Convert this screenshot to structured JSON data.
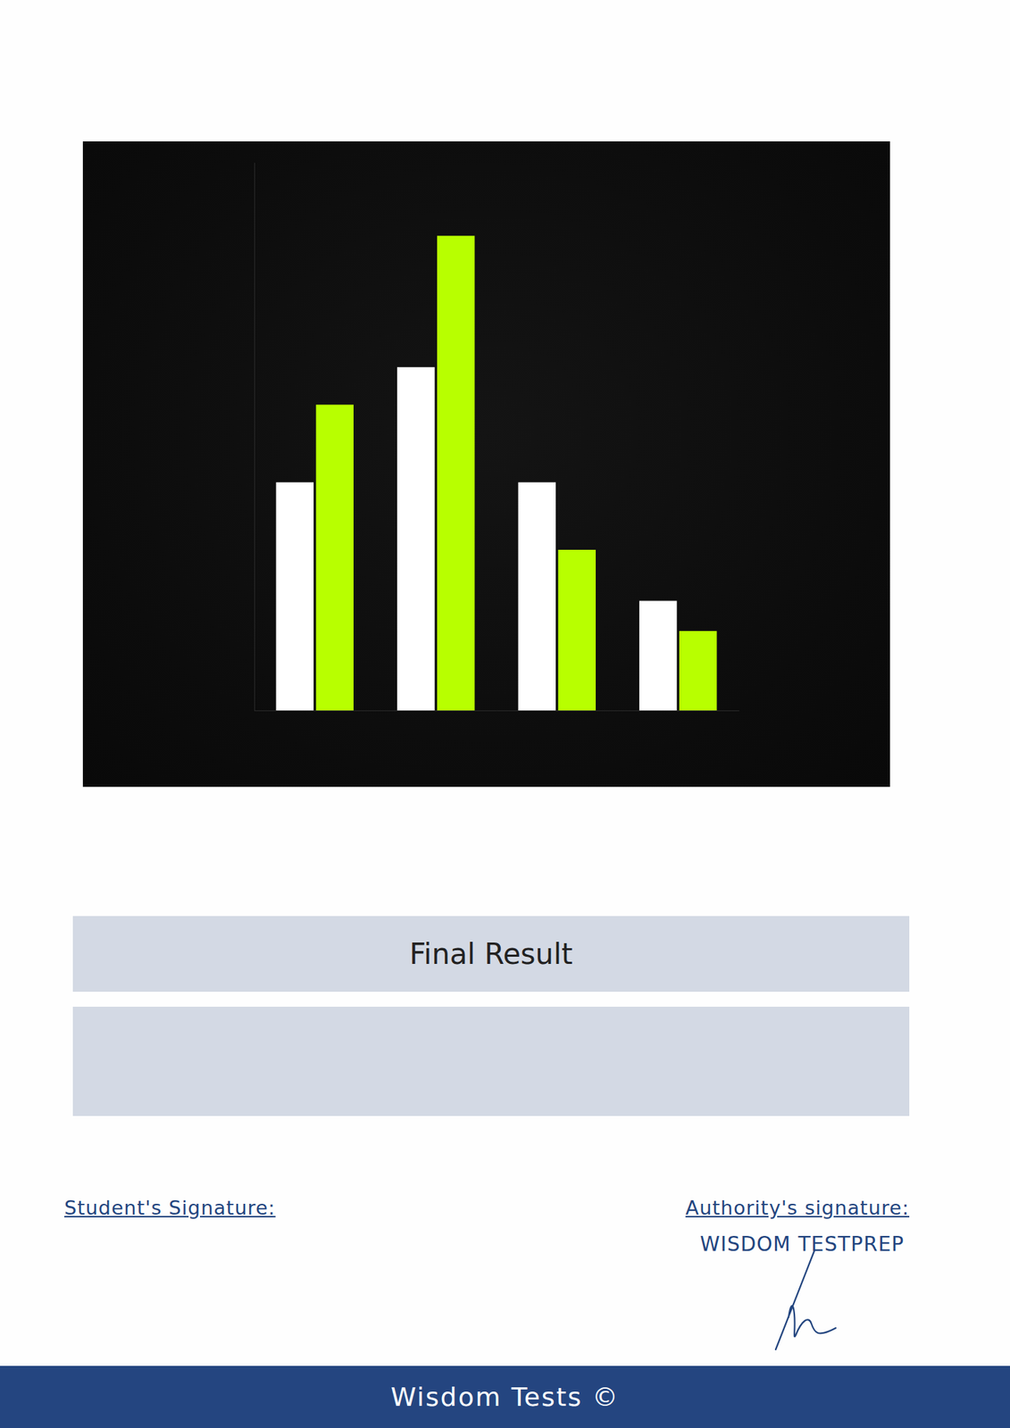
{
  "chart_data": {
    "type": "bar",
    "categories": [
      null,
      null,
      null,
      null
    ],
    "series": [
      {
        "color": "#ffffff",
        "values": [
          250,
          376,
          250,
          120
        ]
      },
      {
        "color": "#b8ff00",
        "values": [
          335,
          520,
          176,
          87
        ]
      }
    ],
    "ylim": [
      0,
      600
    ],
    "grid": false,
    "tick_labels": false
  },
  "document": {
    "result_title": "Final Result",
    "student_signature_label": "Student's Signature:",
    "authority_signature_label": "Authority's signature:",
    "authority_name": "WISDOM TESTPREP",
    "footer": "Wisdom Tests ©"
  }
}
